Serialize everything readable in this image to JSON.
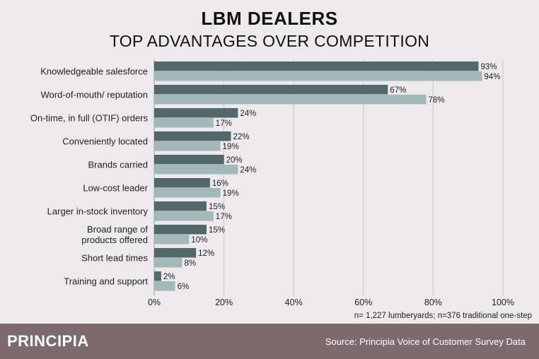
{
  "chart_data": {
    "type": "bar",
    "orientation": "horizontal",
    "title": "LBM DEALERS",
    "subtitle": "TOP ADVANTAGES OVER COMPETITION",
    "categories": [
      "Knowledgeable salesforce",
      "Word-of-mouth/ reputation",
      "On-time, in full (OTIF) orders",
      "Conveniently located",
      "Brands carried",
      "Low-cost leader",
      "Larger in-stock inventory",
      "Broad range of products offered",
      "Short lead times",
      "Training and support"
    ],
    "category_lines": [
      [
        "Knowledgeable salesforce"
      ],
      [
        "Word-of-mouth/ reputation"
      ],
      [
        "On-time, in full (OTIF) orders"
      ],
      [
        "Conveniently located"
      ],
      [
        "Brands carried"
      ],
      [
        "Low-cost leader"
      ],
      [
        "Larger in-stock inventory"
      ],
      [
        "Broad range of",
        "products offered"
      ],
      [
        "Short lead times"
      ],
      [
        "Training and support"
      ]
    ],
    "series": [
      {
        "name": "lumberyards",
        "color": "#52686A",
        "values": [
          93,
          67,
          24,
          22,
          20,
          16,
          15,
          15,
          12,
          2
        ]
      },
      {
        "name": "traditional one-step",
        "color": "#A3B9B9",
        "values": [
          94,
          78,
          17,
          19,
          24,
          19,
          17,
          10,
          8,
          6
        ]
      }
    ],
    "xlim": [
      0,
      100
    ],
    "xticks": [
      0,
      20,
      40,
      60,
      80,
      100
    ],
    "xtick_labels": [
      "0%",
      "20%",
      "40%",
      "60%",
      "80%",
      "100%"
    ],
    "grid": true,
    "value_suffix": "%"
  },
  "note": "n= 1,227 lumberyards; n=376 traditional one-step",
  "footer": {
    "logo": "PRINCIPIA",
    "source": "Source: Principia Voice of Customer Survey Data",
    "color": "#7D6A6C"
  }
}
